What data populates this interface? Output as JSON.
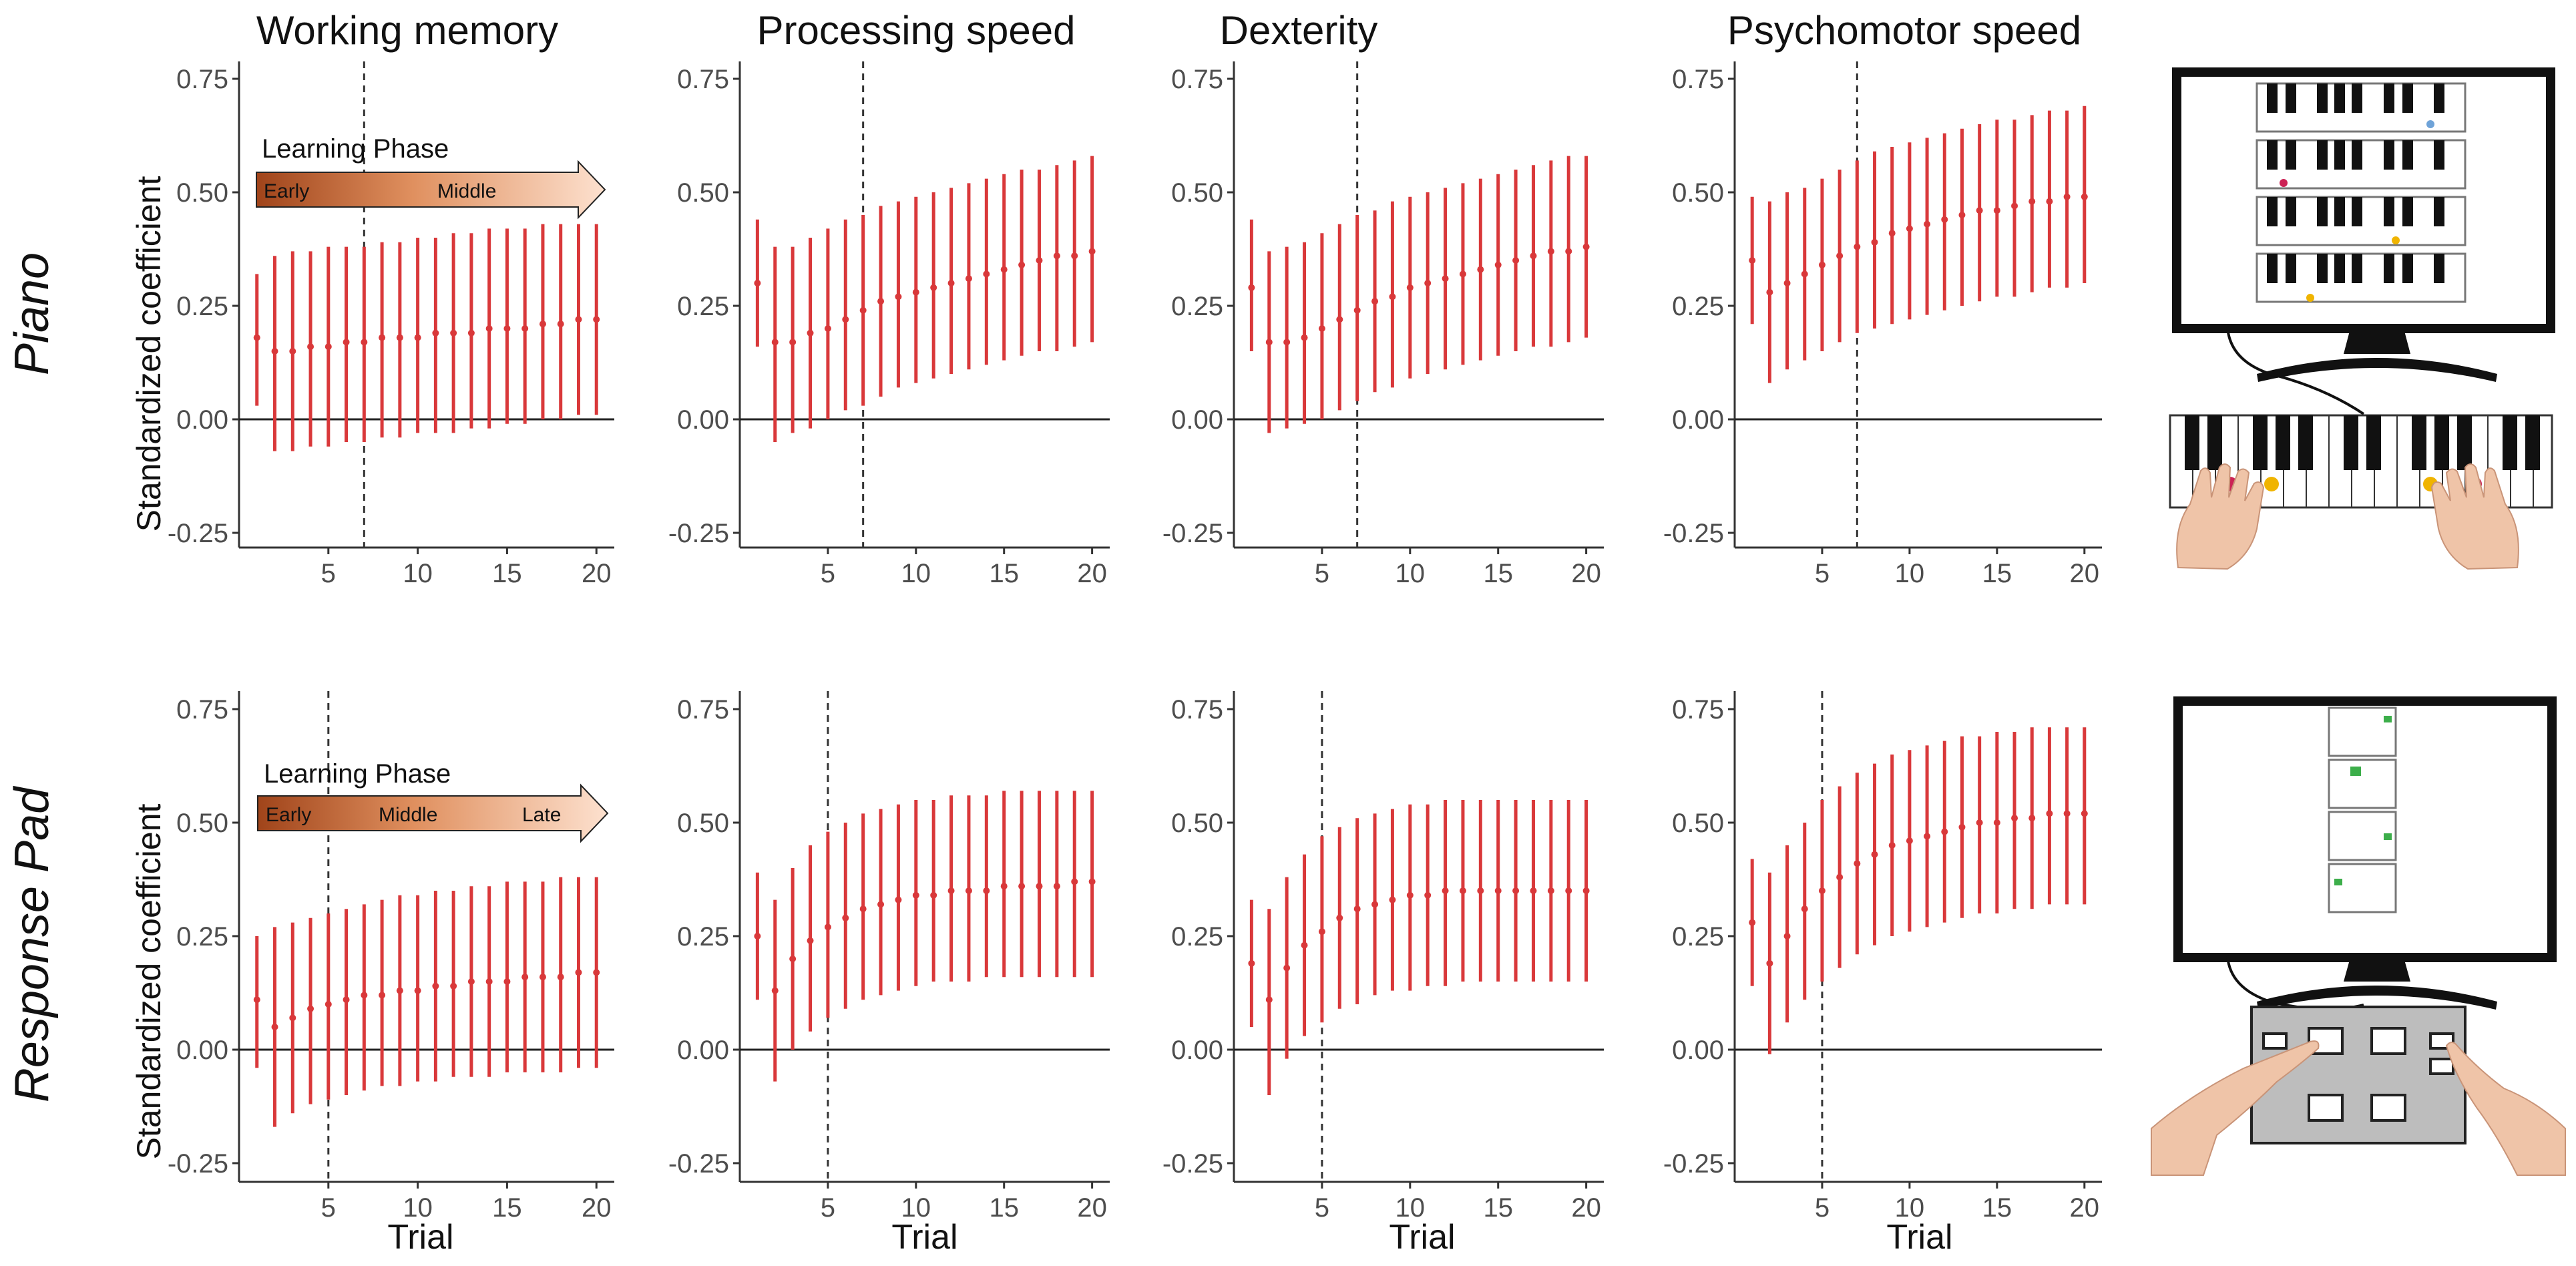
{
  "figure": {
    "columns": [
      "Working memory",
      "Processing speed",
      "Dexterity",
      "Psychomotor speed"
    ],
    "row_labels": [
      "Piano",
      "Response Pad"
    ],
    "xlabel": "Trial",
    "ylabel": "Standardized coefficient",
    "y_ticks": [
      "-0.25",
      "0.00",
      "0.25",
      "0.50",
      "0.75"
    ],
    "y_tick_values": [
      -0.25,
      0,
      0.25,
      0.5,
      0.75
    ],
    "x_ticks": [
      "5",
      "10",
      "15",
      "20"
    ],
    "x_tick_values": [
      5,
      10,
      15,
      20
    ],
    "learning_phase": {
      "title": "Learning Phase",
      "piano_labels": [
        "Early",
        "Middle"
      ],
      "response_pad_labels": [
        "Early",
        "Middle",
        "Late"
      ]
    },
    "colors": {
      "errorbar": "#d9383a",
      "axis": "#333333",
      "arrow_dark": "#a0441a",
      "arrow_light": "#fde1cf"
    },
    "illustrations": {
      "piano": "monitor-with-piano-keyboard-illustration",
      "response_pad": "monitor-with-response-pad-illustration"
    }
  },
  "chart_data": [
    {
      "type": "errorbar",
      "row": "Piano",
      "title": "Working memory",
      "xlabel": "",
      "ylabel": "Standardized coefficient",
      "xlim": [
        0,
        21
      ],
      "ylim": [
        -0.3,
        0.8
      ],
      "vline_x": 7,
      "x": [
        1,
        2,
        3,
        4,
        5,
        6,
        7,
        8,
        9,
        10,
        11,
        12,
        13,
        14,
        15,
        16,
        17,
        18,
        19,
        20
      ],
      "mean": [
        0.18,
        0.15,
        0.15,
        0.16,
        0.16,
        0.17,
        0.17,
        0.18,
        0.18,
        0.18,
        0.19,
        0.19,
        0.19,
        0.2,
        0.2,
        0.2,
        0.21,
        0.21,
        0.22,
        0.22
      ],
      "lower": [
        0.03,
        -0.07,
        -0.07,
        -0.06,
        -0.06,
        -0.05,
        -0.05,
        -0.04,
        -0.04,
        -0.03,
        -0.03,
        -0.03,
        -0.02,
        -0.02,
        -0.01,
        -0.01,
        0.0,
        0.0,
        0.01,
        0.01
      ],
      "upper": [
        0.32,
        0.36,
        0.37,
        0.37,
        0.38,
        0.38,
        0.38,
        0.39,
        0.39,
        0.4,
        0.4,
        0.41,
        0.41,
        0.42,
        0.42,
        0.42,
        0.43,
        0.43,
        0.43,
        0.43
      ]
    },
    {
      "type": "errorbar",
      "row": "Piano",
      "title": "Processing speed",
      "xlabel": "",
      "ylabel": "",
      "xlim": [
        0,
        21
      ],
      "ylim": [
        -0.3,
        0.8
      ],
      "vline_x": 7,
      "x": [
        1,
        2,
        3,
        4,
        5,
        6,
        7,
        8,
        9,
        10,
        11,
        12,
        13,
        14,
        15,
        16,
        17,
        18,
        19,
        20
      ],
      "mean": [
        0.3,
        0.17,
        0.17,
        0.19,
        0.2,
        0.22,
        0.24,
        0.26,
        0.27,
        0.28,
        0.29,
        0.3,
        0.31,
        0.32,
        0.33,
        0.34,
        0.35,
        0.36,
        0.36,
        0.37
      ],
      "lower": [
        0.16,
        -0.05,
        -0.03,
        -0.02,
        0.0,
        0.02,
        0.03,
        0.05,
        0.07,
        0.08,
        0.09,
        0.1,
        0.11,
        0.12,
        0.13,
        0.14,
        0.15,
        0.15,
        0.16,
        0.17
      ],
      "upper": [
        0.44,
        0.38,
        0.38,
        0.4,
        0.42,
        0.44,
        0.45,
        0.47,
        0.48,
        0.49,
        0.5,
        0.51,
        0.52,
        0.53,
        0.54,
        0.55,
        0.55,
        0.56,
        0.57,
        0.58
      ]
    },
    {
      "type": "errorbar",
      "row": "Piano",
      "title": "Dexterity",
      "xlabel": "",
      "ylabel": "",
      "xlim": [
        0,
        21
      ],
      "ylim": [
        -0.3,
        0.8
      ],
      "vline_x": 7,
      "x": [
        1,
        2,
        3,
        4,
        5,
        6,
        7,
        8,
        9,
        10,
        11,
        12,
        13,
        14,
        15,
        16,
        17,
        18,
        19,
        20
      ],
      "mean": [
        0.29,
        0.17,
        0.17,
        0.18,
        0.2,
        0.22,
        0.24,
        0.26,
        0.27,
        0.29,
        0.3,
        0.31,
        0.32,
        0.33,
        0.34,
        0.35,
        0.36,
        0.37,
        0.37,
        0.38
      ],
      "lower": [
        0.15,
        -0.03,
        -0.02,
        -0.01,
        0.0,
        0.02,
        0.04,
        0.06,
        0.07,
        0.09,
        0.1,
        0.11,
        0.12,
        0.13,
        0.14,
        0.15,
        0.16,
        0.16,
        0.17,
        0.18
      ],
      "upper": [
        0.44,
        0.37,
        0.38,
        0.39,
        0.41,
        0.43,
        0.45,
        0.46,
        0.48,
        0.49,
        0.5,
        0.51,
        0.52,
        0.53,
        0.54,
        0.55,
        0.56,
        0.57,
        0.58,
        0.58
      ]
    },
    {
      "type": "errorbar",
      "row": "Piano",
      "title": "Psychomotor speed",
      "xlabel": "",
      "ylabel": "",
      "xlim": [
        0,
        21
      ],
      "ylim": [
        -0.3,
        0.8
      ],
      "vline_x": 7,
      "x": [
        1,
        2,
        3,
        4,
        5,
        6,
        7,
        8,
        9,
        10,
        11,
        12,
        13,
        14,
        15,
        16,
        17,
        18,
        19,
        20
      ],
      "mean": [
        0.35,
        0.28,
        0.3,
        0.32,
        0.34,
        0.36,
        0.38,
        0.39,
        0.41,
        0.42,
        0.43,
        0.44,
        0.45,
        0.46,
        0.46,
        0.47,
        0.48,
        0.48,
        0.49,
        0.49
      ],
      "lower": [
        0.21,
        0.08,
        0.11,
        0.13,
        0.15,
        0.17,
        0.19,
        0.2,
        0.21,
        0.22,
        0.23,
        0.24,
        0.25,
        0.26,
        0.27,
        0.27,
        0.28,
        0.29,
        0.29,
        0.3
      ],
      "upper": [
        0.49,
        0.48,
        0.5,
        0.51,
        0.53,
        0.55,
        0.57,
        0.59,
        0.6,
        0.61,
        0.62,
        0.63,
        0.64,
        0.65,
        0.66,
        0.66,
        0.67,
        0.68,
        0.68,
        0.69
      ]
    },
    {
      "type": "errorbar",
      "row": "Response Pad",
      "title": "Working memory",
      "xlabel": "Trial",
      "ylabel": "Standardized coefficient",
      "xlim": [
        0,
        21
      ],
      "ylim": [
        -0.3,
        0.8
      ],
      "vline_x": 5,
      "x": [
        1,
        2,
        3,
        4,
        5,
        6,
        7,
        8,
        9,
        10,
        11,
        12,
        13,
        14,
        15,
        16,
        17,
        18,
        19,
        20
      ],
      "mean": [
        0.11,
        0.05,
        0.07,
        0.09,
        0.1,
        0.11,
        0.12,
        0.12,
        0.13,
        0.13,
        0.14,
        0.14,
        0.15,
        0.15,
        0.15,
        0.16,
        0.16,
        0.16,
        0.17,
        0.17
      ],
      "lower": [
        -0.04,
        -0.17,
        -0.14,
        -0.12,
        -0.11,
        -0.1,
        -0.09,
        -0.08,
        -0.08,
        -0.07,
        -0.07,
        -0.06,
        -0.06,
        -0.06,
        -0.05,
        -0.05,
        -0.05,
        -0.05,
        -0.04,
        -0.04
      ],
      "upper": [
        0.25,
        0.27,
        0.28,
        0.29,
        0.3,
        0.31,
        0.32,
        0.33,
        0.34,
        0.34,
        0.35,
        0.35,
        0.36,
        0.36,
        0.37,
        0.37,
        0.37,
        0.38,
        0.38,
        0.38
      ]
    },
    {
      "type": "errorbar",
      "row": "Response Pad",
      "title": "Processing speed",
      "xlabel": "Trial",
      "ylabel": "",
      "xlim": [
        0,
        21
      ],
      "ylim": [
        -0.3,
        0.8
      ],
      "vline_x": 5,
      "x": [
        1,
        2,
        3,
        4,
        5,
        6,
        7,
        8,
        9,
        10,
        11,
        12,
        13,
        14,
        15,
        16,
        17,
        18,
        19,
        20
      ],
      "mean": [
        0.25,
        0.13,
        0.2,
        0.24,
        0.27,
        0.29,
        0.31,
        0.32,
        0.33,
        0.34,
        0.34,
        0.35,
        0.35,
        0.35,
        0.36,
        0.36,
        0.36,
        0.36,
        0.37,
        0.37
      ],
      "lower": [
        0.11,
        -0.07,
        0.0,
        0.04,
        0.07,
        0.09,
        0.11,
        0.12,
        0.13,
        0.14,
        0.15,
        0.15,
        0.15,
        0.16,
        0.16,
        0.16,
        0.16,
        0.16,
        0.16,
        0.16
      ],
      "upper": [
        0.39,
        0.33,
        0.4,
        0.45,
        0.48,
        0.5,
        0.52,
        0.53,
        0.54,
        0.55,
        0.55,
        0.56,
        0.56,
        0.56,
        0.57,
        0.57,
        0.57,
        0.57,
        0.57,
        0.57
      ]
    },
    {
      "type": "errorbar",
      "row": "Response Pad",
      "title": "Dexterity",
      "xlabel": "Trial",
      "ylabel": "",
      "xlim": [
        0,
        21
      ],
      "ylim": [
        -0.3,
        0.8
      ],
      "vline_x": 5,
      "x": [
        1,
        2,
        3,
        4,
        5,
        6,
        7,
        8,
        9,
        10,
        11,
        12,
        13,
        14,
        15,
        16,
        17,
        18,
        19,
        20
      ],
      "mean": [
        0.19,
        0.11,
        0.18,
        0.23,
        0.26,
        0.29,
        0.31,
        0.32,
        0.33,
        0.34,
        0.34,
        0.35,
        0.35,
        0.35,
        0.35,
        0.35,
        0.35,
        0.35,
        0.35,
        0.35
      ],
      "lower": [
        0.05,
        -0.1,
        -0.02,
        0.03,
        0.06,
        0.09,
        0.1,
        0.12,
        0.13,
        0.13,
        0.14,
        0.14,
        0.15,
        0.15,
        0.15,
        0.15,
        0.15,
        0.15,
        0.15,
        0.15
      ],
      "upper": [
        0.33,
        0.31,
        0.38,
        0.43,
        0.47,
        0.49,
        0.51,
        0.52,
        0.53,
        0.54,
        0.54,
        0.55,
        0.55,
        0.55,
        0.55,
        0.55,
        0.55,
        0.55,
        0.55,
        0.55
      ]
    },
    {
      "type": "errorbar",
      "row": "Response Pad",
      "title": "Psychomotor speed",
      "xlabel": "Trial",
      "ylabel": "",
      "xlim": [
        0,
        21
      ],
      "ylim": [
        -0.3,
        0.8
      ],
      "vline_x": 5,
      "x": [
        1,
        2,
        3,
        4,
        5,
        6,
        7,
        8,
        9,
        10,
        11,
        12,
        13,
        14,
        15,
        16,
        17,
        18,
        19,
        20
      ],
      "mean": [
        0.28,
        0.19,
        0.25,
        0.31,
        0.35,
        0.38,
        0.41,
        0.43,
        0.45,
        0.46,
        0.47,
        0.48,
        0.49,
        0.5,
        0.5,
        0.51,
        0.51,
        0.52,
        0.52,
        0.52
      ],
      "lower": [
        0.14,
        -0.01,
        0.06,
        0.11,
        0.15,
        0.18,
        0.21,
        0.23,
        0.25,
        0.26,
        0.27,
        0.28,
        0.29,
        0.3,
        0.3,
        0.31,
        0.31,
        0.32,
        0.32,
        0.32
      ],
      "upper": [
        0.42,
        0.39,
        0.45,
        0.5,
        0.55,
        0.58,
        0.61,
        0.63,
        0.65,
        0.66,
        0.67,
        0.68,
        0.69,
        0.69,
        0.7,
        0.7,
        0.71,
        0.71,
        0.71,
        0.71
      ]
    }
  ]
}
